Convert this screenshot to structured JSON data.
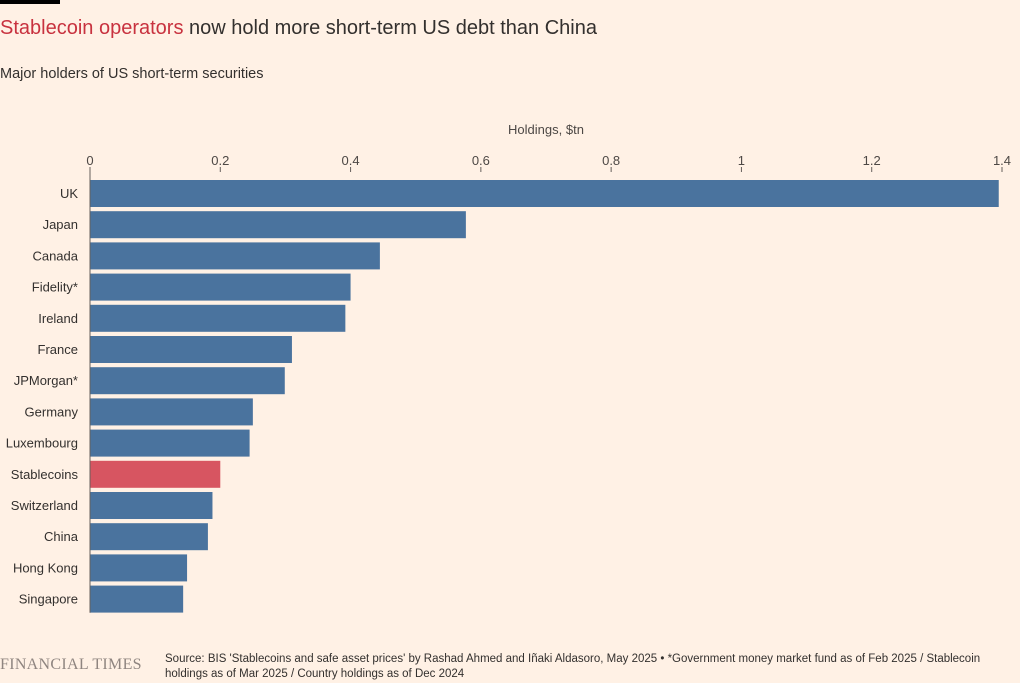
{
  "header": {
    "title_highlight": "Stablecoin operators",
    "title_rest": " now hold more short-term US debt than China",
    "subtitle": "Major holders of US short-term securities"
  },
  "footer": {
    "logo": "FINANCIAL TIMES",
    "source": "Source: BIS 'Stablecoins and safe asset prices' by Rashad Ahmed and Iñaki Aldasoro, May 2025 • *Government money market fund as of Feb 2025 / Stablecoin holdings as of Mar 2025 / Country holdings as of Dec 2024"
  },
  "colors": {
    "bar": "#4A739E",
    "highlight_bar": "#D75561",
    "background": "#FFF1E5"
  },
  "chart_data": {
    "type": "bar",
    "orientation": "horizontal",
    "xlabel": "Holdings, $tn",
    "xlim": [
      0,
      1.4
    ],
    "ticks": [
      0,
      0.2,
      0.4,
      0.6,
      0.8,
      1,
      1.2,
      1.4
    ],
    "tick_labels": [
      "0",
      "0.2",
      "0.4",
      "0.6",
      "0.8",
      "1",
      "1.2",
      "1.4"
    ],
    "categories": [
      "UK",
      "Japan",
      "Canada",
      "Fidelity*",
      "Ireland",
      "France",
      "JPMorgan*",
      "Germany",
      "Luxembourg",
      "Stablecoins",
      "Switzerland",
      "China",
      "Hong Kong",
      "Singapore"
    ],
    "values": [
      1.395,
      0.577,
      0.445,
      0.4,
      0.392,
      0.31,
      0.299,
      0.25,
      0.245,
      0.2,
      0.188,
      0.181,
      0.149,
      0.143
    ],
    "highlight": "Stablecoins"
  }
}
